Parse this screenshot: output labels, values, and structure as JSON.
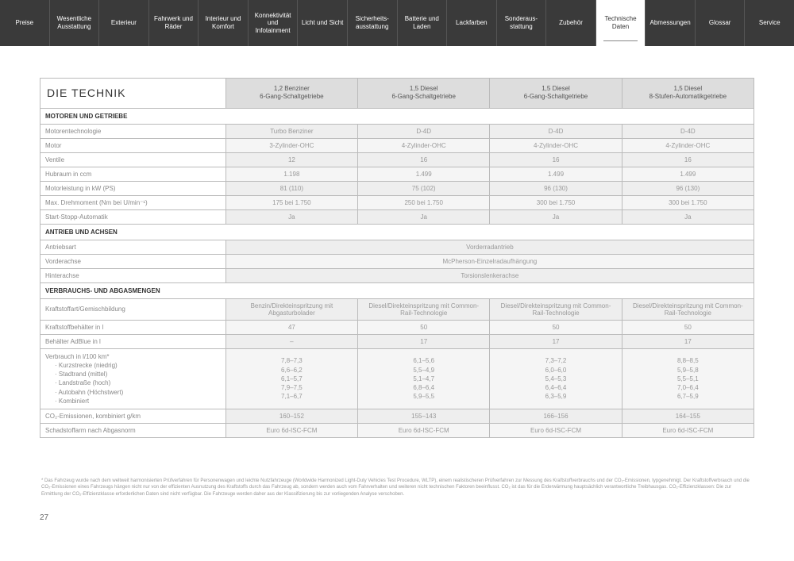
{
  "nav": {
    "items": [
      "Preise",
      "Wesentliche Ausstattung",
      "Exterieur",
      "Fahrwerk und Räder",
      "Interieur und Komfort",
      "Konnektivität und Infotainment",
      "Licht und Sicht",
      "Sicherheits-ausstattung",
      "Batterie und Laden",
      "Lackfarben",
      "Sonderaus-stattung",
      "Zubehör",
      "Technische Daten",
      "Abmessungen",
      "Glossar",
      "Service"
    ],
    "activeIndex": 12
  },
  "table": {
    "title": "DIE TECHNIK",
    "cols": [
      {
        "l1": "1,2 Benziner",
        "l2": "6-Gang-Schaltgetriebe"
      },
      {
        "l1": "1,5 Diesel",
        "l2": "6-Gang-Schaltgetriebe"
      },
      {
        "l1": "1,5 Diesel",
        "l2": "6-Gang-Schaltgetriebe"
      },
      {
        "l1": "1,5 Diesel",
        "l2": "8-Stufen-Automatikgetriebe"
      }
    ],
    "sections": [
      {
        "header": "MOTOREN UND GETRIEBE",
        "rows": [
          {
            "label": "Motorentechnologie",
            "vals": [
              "Turbo Benziner",
              "D-4D",
              "D-4D",
              "D-4D"
            ]
          },
          {
            "label": "Motor",
            "vals": [
              "3-Zylinder-OHC",
              "4-Zylinder-OHC",
              "4-Zylinder-OHC",
              "4-Zylinder-OHC"
            ]
          },
          {
            "label": "Ventile",
            "vals": [
              "12",
              "16",
              "16",
              "16"
            ]
          },
          {
            "label": "Hubraum in ccm",
            "vals": [
              "1.198",
              "1.499",
              "1.499",
              "1.499"
            ]
          },
          {
            "label": "Motorleistung in kW (PS)",
            "vals": [
              "81 (110)",
              "75 (102)",
              "96 (130)",
              "96 (130)"
            ]
          },
          {
            "label": "Max. Drehmoment (Nm bei U/min⁻¹)",
            "vals": [
              "175 bei 1.750",
              "250 bei 1.750",
              "300 bei 1.750",
              "300 bei 1.750"
            ]
          },
          {
            "label": "Start-Stopp-Automatik",
            "vals": [
              "Ja",
              "Ja",
              "Ja",
              "Ja"
            ]
          }
        ]
      },
      {
        "header": "ANTRIEB UND ACHSEN",
        "rows": [
          {
            "label": "Antriebsart",
            "span": "Vorderradantrieb"
          },
          {
            "label": "Vorderachse",
            "span": "McPherson-Einzelradaufhängung"
          },
          {
            "label": "Hinterachse",
            "span": "Torsionslenkerachse"
          }
        ]
      },
      {
        "header": "VERBRAUCHS- UND ABGASMENGEN",
        "rows": [
          {
            "label": "Kraftstoffart/Gemischbildung",
            "vals": [
              "Benzin/Direkteinspritzung mit Abgasturbolader",
              "Diesel/Direkteinspritzung mit Common-Rail-Technologie",
              "Diesel/Direkteinspritzung mit Common-Rail-Technologie",
              "Diesel/Direkteinspritzung mit Common-Rail-Technologie"
            ],
            "tall": true
          },
          {
            "label": "Kraftstoffbehälter in l",
            "vals": [
              "47",
              "50",
              "50",
              "50"
            ]
          },
          {
            "label": "Behälter AdBlue in l",
            "vals": [
              "–",
              "17",
              "17",
              "17"
            ]
          },
          {
            "multi": {
              "label": "Verbrauch in l/100 km*",
              "sub": [
                "· Kurzstrecke (niedrig)",
                "· Stadtrand (mittel)",
                "· Landstraße (hoch)",
                "· Autobahn (Höchstwert)",
                "· Kombiniert"
              ]
            },
            "vals": [
              "7,8–7,3\n6,6–6,2\n6,1–5,7\n7,9–7,5\n7,1–6,7",
              "6,1–5,6\n5,5–4,9\n5,1–4,7\n6,8–6,4\n5,9–5,5",
              "7,3–7,2\n6,0–6,0\n5,4–5,3\n6,4–6,4\n6,3–5,9",
              "8,8–8,5\n5,9–5,8\n5,5–5,1\n7,0–6,4\n6,7–5,9"
            ]
          },
          {
            "label": "CO₂-Emissionen, kombiniert g/km",
            "vals": [
              "160–152",
              "155–143",
              "166–156",
              "164–155"
            ]
          },
          {
            "label": "Schadstoffarm nach Abgasnorm",
            "vals": [
              "Euro 6d-ISC-FCM",
              "Euro 6d-ISC-FCM",
              "Euro 6d-ISC-FCM",
              "Euro 6d-ISC-FCM"
            ]
          }
        ]
      }
    ]
  },
  "footnote": "* Das Fahrzeug wurde nach dem weltweit harmonisierten Prüfverfahren für Personenwagen und leichte Nutzfahrzeuge (Worldwide Harmonized Light-Duty Vehicles Test Procedure, WLTP), einem realistischeren Prüfverfahren zur Messung des Kraftstoffverbrauchs und der CO₂-Emissionen, typgenehmigt. Der Kraftstoffverbrauch und die CO₂-Emissionen eines Fahrzeugs hängen nicht nur von der effizienten Ausnutzung des Kraftstoffs durch das Fahrzeug ab, sondern werden auch vom Fahrverhalten und weiteren nicht technischen Faktoren beeinflusst. CO₂ ist das für die Erderwärmung hauptsächlich verantwortliche Treibhausgas. CO₂-Effizienzklassen: Die zur Ermittlung der CO₂-Effizienzklasse erforderlichen Daten sind nicht verfügbar. Die Fahrzeuge werden daher aus der Klassifizierung bis zur vorliegenden Analyse verschoben.",
  "pageNumber": "27"
}
